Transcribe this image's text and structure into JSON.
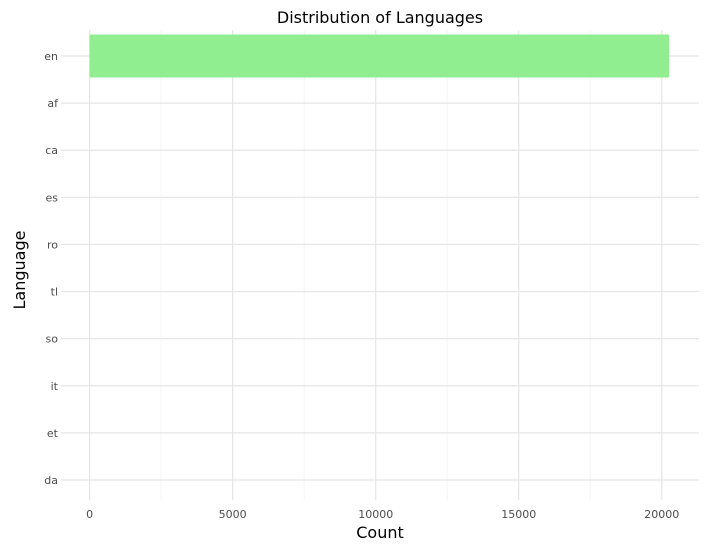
{
  "chart_data": {
    "type": "bar",
    "orientation": "horizontal",
    "title": "Distribution of Languages",
    "xlabel": "Count",
    "ylabel": "Language",
    "categories": [
      "en",
      "af",
      "ca",
      "es",
      "ro",
      "tl",
      "so",
      "it",
      "et",
      "da"
    ],
    "values": [
      20250,
      3,
      2,
      2,
      2,
      1,
      1,
      1,
      1,
      1
    ],
    "xlim": [
      -1000,
      21300
    ],
    "xticks": [
      0,
      5000,
      10000,
      15000,
      20000
    ],
    "grid": true,
    "legend": "none",
    "bar_color": "#90ee90",
    "grid_major_color": "#e5e5e5",
    "grid_minor_color": "#f5f5f5"
  }
}
